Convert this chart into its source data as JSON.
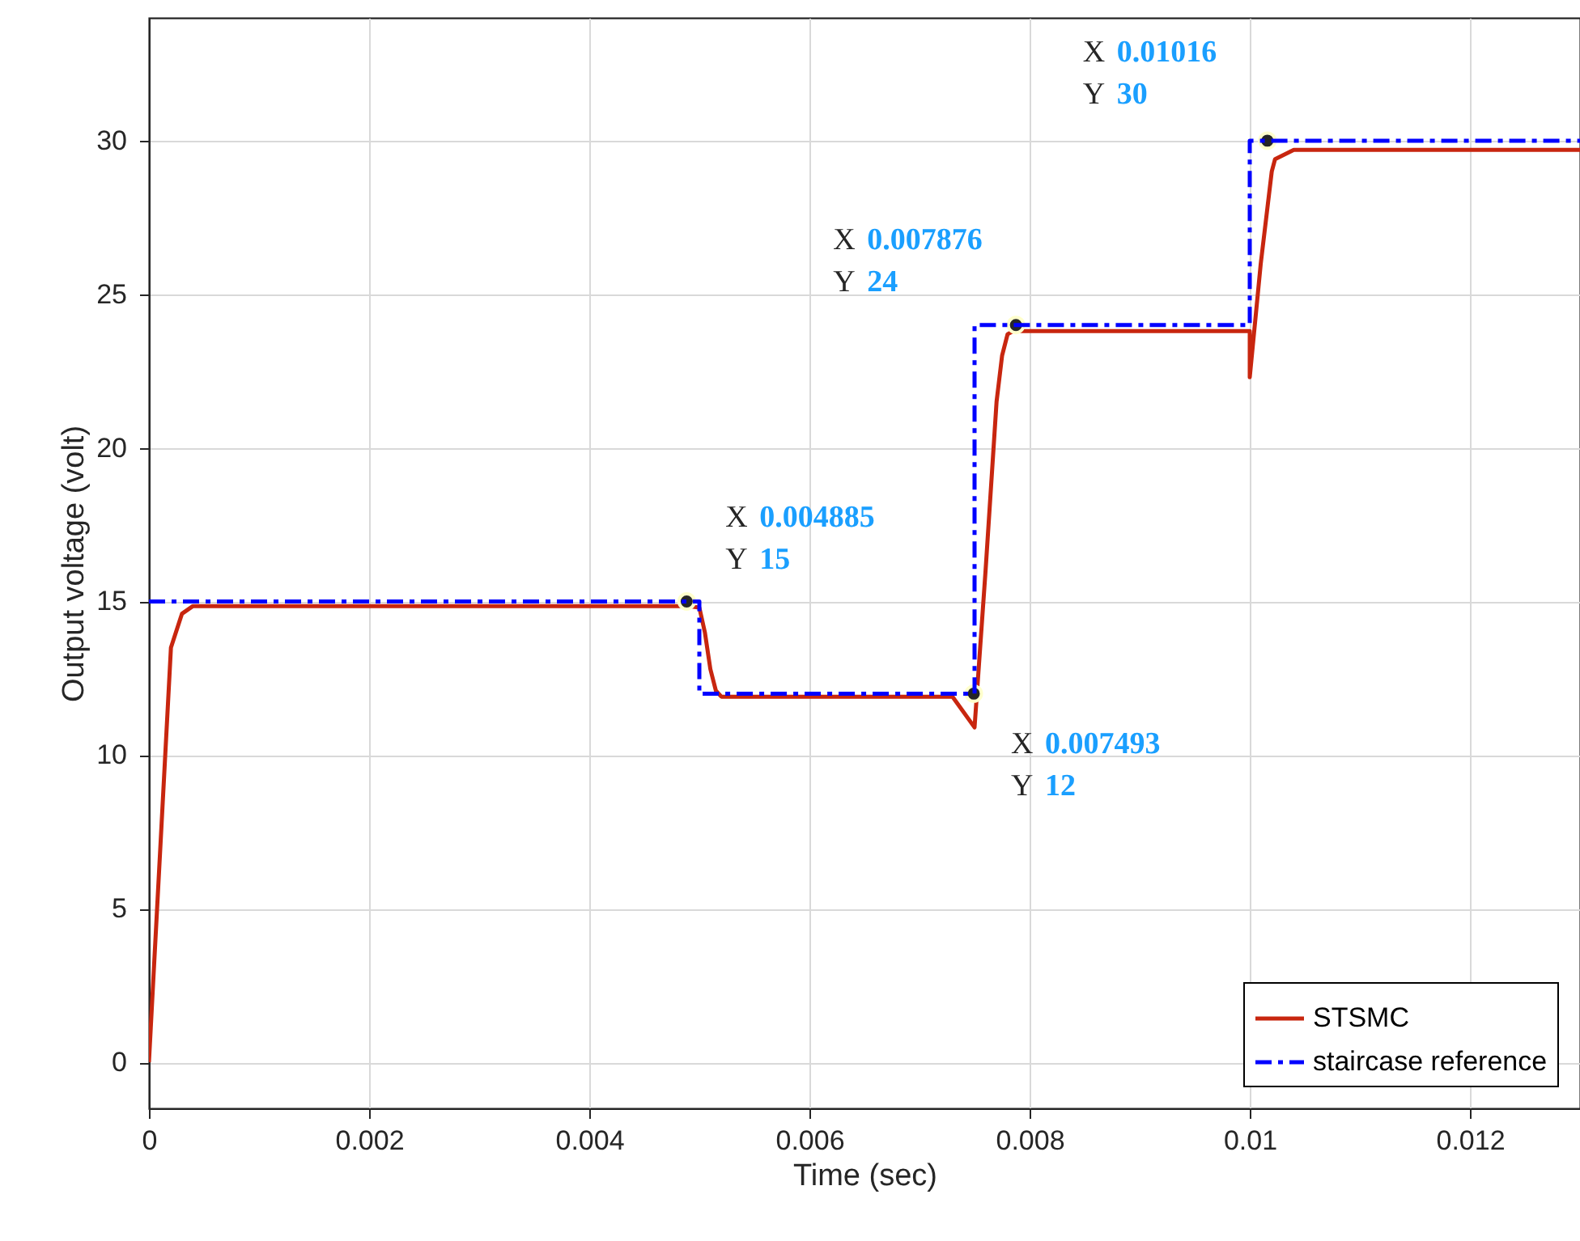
{
  "chart_data": {
    "type": "line",
    "xlabel": "Time (sec)",
    "ylabel": "Output voltage (volt)",
    "xlim": [
      0,
      0.013
    ],
    "ylim": [
      -1.5,
      34
    ],
    "xticks": [
      0,
      0.002,
      0.004,
      0.006,
      0.008,
      0.01,
      0.012
    ],
    "yticks": [
      0,
      5,
      10,
      15,
      20,
      25,
      30
    ],
    "grid": true,
    "legend": "bottom right",
    "series": [
      {
        "name": "STSMC",
        "color": "#c8260f",
        "type": "line",
        "line_style": "solid",
        "x": [
          0,
          0.0002,
          0.0003,
          0.0004,
          0.0049,
          0.005,
          0.00505,
          0.0051,
          0.00515,
          0.0052,
          0.0073,
          0.0075,
          0.0076,
          0.0077,
          0.00775,
          0.0078,
          0.00785,
          0.01,
          0.01,
          0.0101,
          0.0102,
          0.01023,
          0.0104,
          0.0105,
          0.013
        ],
        "values": [
          0,
          13.5,
          14.6,
          14.85,
          14.85,
          14.8,
          14.0,
          12.8,
          12.1,
          11.9,
          11.9,
          10.9,
          16.0,
          21.5,
          23.0,
          23.7,
          23.8,
          23.8,
          22.3,
          26.0,
          29.0,
          29.4,
          29.7,
          29.7,
          29.7
        ]
      },
      {
        "name": "staircase reference",
        "color": "#0000ff",
        "type": "step",
        "line_style": "dashed",
        "x": [
          0,
          0.005,
          0.0075,
          0.01,
          0.013
        ],
        "values": [
          15,
          12,
          24,
          30,
          30
        ]
      }
    ],
    "annotations": [
      {
        "text": "X 0.004885\nY 15",
        "x": 0.004885,
        "y": 15
      },
      {
        "text": "X 0.007493\nY 12",
        "x": 0.007493,
        "y": 12
      },
      {
        "text": "X 0.007876\nY 24",
        "x": 0.007876,
        "y": 24
      },
      {
        "text": "X 0.01016\nY 30",
        "x": 0.01016,
        "y": 30
      }
    ]
  }
}
